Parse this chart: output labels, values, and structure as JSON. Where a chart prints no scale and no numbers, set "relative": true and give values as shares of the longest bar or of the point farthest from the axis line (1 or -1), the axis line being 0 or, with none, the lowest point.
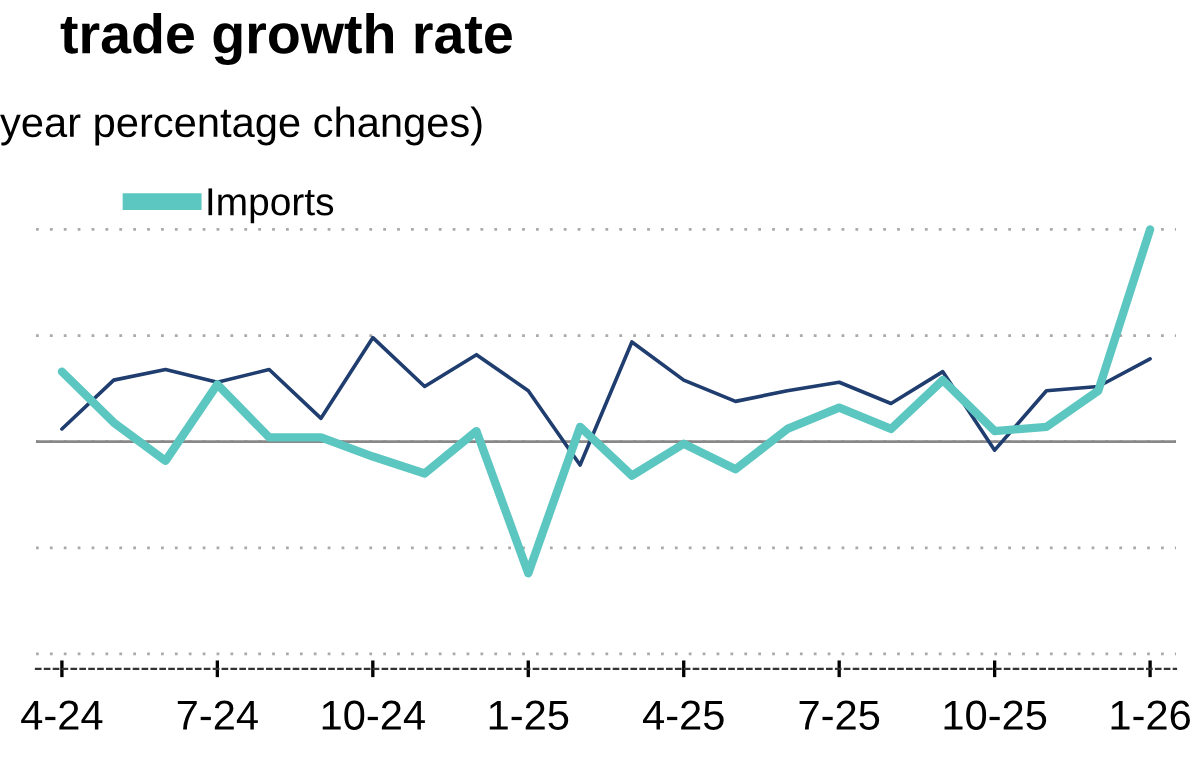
{
  "chart_data": {
    "type": "line",
    "title": "trade growth rate",
    "subtitle": "year percentage changes)",
    "relative": true,
    "grid": "y",
    "legend": "top left",
    "categories": [
      "4-24",
      null,
      null,
      "7-24",
      null,
      null,
      "10-24",
      null,
      null,
      "1-25",
      null,
      null,
      "4-25",
      null,
      null,
      "7-25",
      null,
      null,
      "10-25",
      null,
      null,
      "1-26"
    ],
    "series": [
      {
        "color": "#1f3d6e",
        "values": [
          0.06,
          0.29,
          0.34,
          0.28,
          0.34,
          0.11,
          0.49,
          0.26,
          0.41,
          0.24,
          -0.11,
          0.47,
          0.29,
          0.19,
          0.24,
          0.28,
          0.18,
          0.33,
          -0.04,
          0.24,
          0.26,
          0.39
        ]
      },
      {
        "name": "Imports",
        "color": "#5cc6c0",
        "values": [
          0.33,
          0.09,
          -0.09,
          0.27,
          0.02,
          0.02,
          -0.07,
          -0.15,
          0.05,
          -0.62,
          0.07,
          -0.16,
          -0.01,
          -0.13,
          0.06,
          0.16,
          0.06,
          0.29,
          0.05,
          0.07,
          0.24,
          1
        ]
      }
    ]
  }
}
